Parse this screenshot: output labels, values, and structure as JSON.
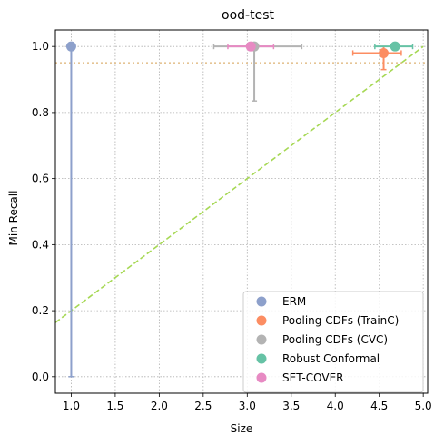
{
  "chart_data": {
    "type": "scatter",
    "title": "ood-test",
    "xlabel": "Size",
    "ylabel": "Min Recall",
    "xlim": [
      0.82,
      5.05
    ],
    "ylim": [
      -0.05,
      1.05
    ],
    "xticks": [
      1.0,
      1.5,
      2.0,
      2.5,
      3.0,
      3.5,
      4.0,
      4.5,
      5.0
    ],
    "yticks": [
      0.0,
      0.2,
      0.4,
      0.6,
      0.8,
      1.0
    ],
    "xtick_labels": [
      "1.0",
      "1.5",
      "2.0",
      "2.5",
      "3.0",
      "3.5",
      "4.0",
      "4.5",
      "5.0"
    ],
    "ytick_labels": [
      "0.0",
      "0.2",
      "0.4",
      "0.6",
      "0.8",
      "1.0"
    ],
    "grid": true,
    "legend_position": "lower-right",
    "reference_lines": [
      {
        "kind": "horizontal",
        "y": 0.95,
        "style": "dotted",
        "color": "#e5c494"
      },
      {
        "kind": "diagonal",
        "points": [
          [
            0.82,
            0.164
          ],
          [
            5.0,
            1.0
          ]
        ],
        "style": "dashed",
        "color": "#a6d854"
      }
    ],
    "series": [
      {
        "name": "ERM",
        "color": "#8da0cb",
        "x": 1.0,
        "y": 1.0,
        "xerr": [
          1.0,
          1.0
        ],
        "yerr": [
          0.0,
          1.0
        ]
      },
      {
        "name": "Pooling CDFs (TrainC)",
        "color": "#fc8d62",
        "x": 4.55,
        "y": 0.98,
        "xerr": [
          4.2,
          4.75
        ],
        "yerr": [
          0.93,
          1.0
        ]
      },
      {
        "name": "Pooling CDFs (CVC)",
        "color": "#b3b3b3",
        "x": 3.08,
        "y": 1.0,
        "xerr": [
          2.62,
          3.62
        ],
        "yerr": [
          0.835,
          1.0
        ]
      },
      {
        "name": "Robust Conformal",
        "color": "#66c2a5",
        "x": 4.68,
        "y": 1.0,
        "xerr": [
          4.45,
          4.88
        ],
        "yerr": [
          1.0,
          1.0
        ]
      },
      {
        "name": "SET-COVER",
        "color": "#e78ac3",
        "x": 3.04,
        "y": 1.0,
        "xerr": [
          2.78,
          3.3
        ],
        "yerr": [
          1.0,
          1.0
        ]
      }
    ]
  }
}
